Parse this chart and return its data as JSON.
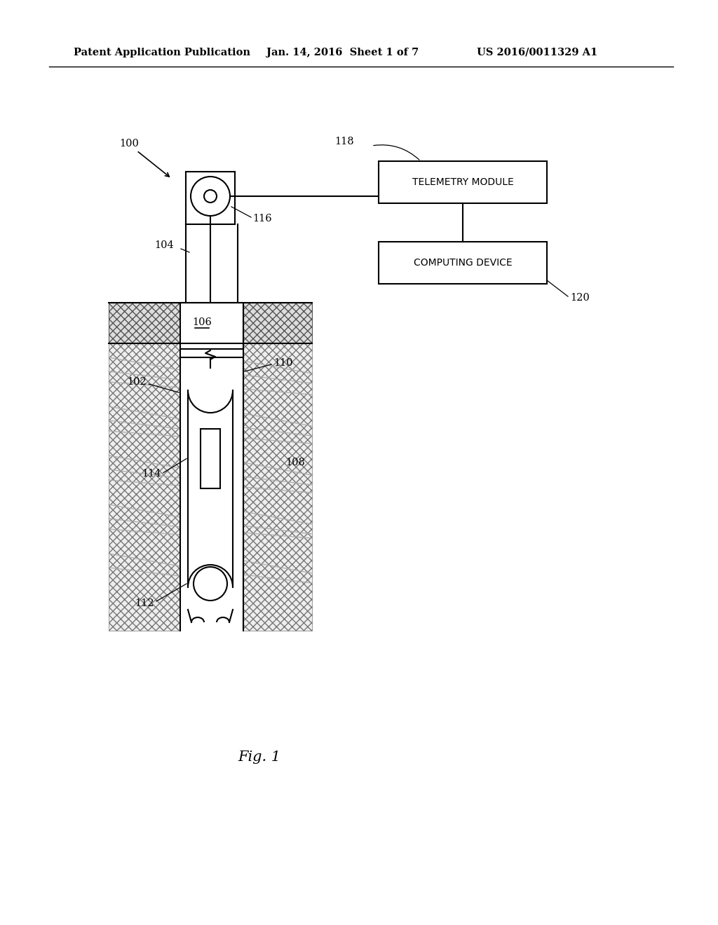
{
  "bg_color": "#ffffff",
  "header_text1": "Patent Application Publication",
  "header_text2": "Jan. 14, 2016  Sheet 1 of 7",
  "header_text3": "US 2016/0011329 A1",
  "fig_label": "Fig. 1",
  "label_100": "100",
  "label_102": "102",
  "label_104": "104",
  "label_106": "106",
  "label_108": "108",
  "label_110": "110",
  "label_112": "112",
  "label_114": "114",
  "label_116": "116",
  "label_118": "118",
  "label_120": "120",
  "box1_text": "TELEMETRY MODULE",
  "box2_text": "COMPUTING DEVICE",
  "line_color": "#000000",
  "hatch_color": "#888888"
}
